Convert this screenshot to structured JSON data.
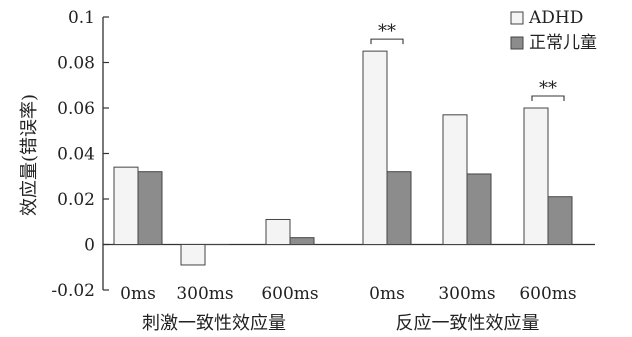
{
  "chart_data": {
    "type": "bar",
    "ylabel": "效应量(错误率)",
    "ylim": [
      -0.02,
      0.1
    ],
    "yticks": [
      "-0.02",
      "0",
      "0.02",
      "0.04",
      "0.06",
      "0.08",
      "0.1"
    ],
    "categories": [
      "0ms",
      "300ms",
      "600ms",
      "0ms",
      "300ms",
      "600ms"
    ],
    "groups": [
      {
        "label": "刺激一致性效应量",
        "categories": [
          0,
          1,
          2
        ]
      },
      {
        "label": "反应一致性效应量",
        "categories": [
          3,
          4,
          5
        ]
      }
    ],
    "series": [
      {
        "name": "ADHD",
        "color": "#f4f4f4",
        "values": [
          0.034,
          -0.009,
          0.011,
          0.085,
          0.057,
          0.06
        ]
      },
      {
        "name": "正常儿童",
        "color": "#8c8c8c",
        "values": [
          0.032,
          0.0,
          0.003,
          0.032,
          0.031,
          0.021
        ]
      }
    ],
    "annotations": [
      {
        "text": "**",
        "category_index": 3
      },
      {
        "text": "**",
        "category_index": 5
      }
    ],
    "legend_position": "top-right",
    "grid": false
  }
}
